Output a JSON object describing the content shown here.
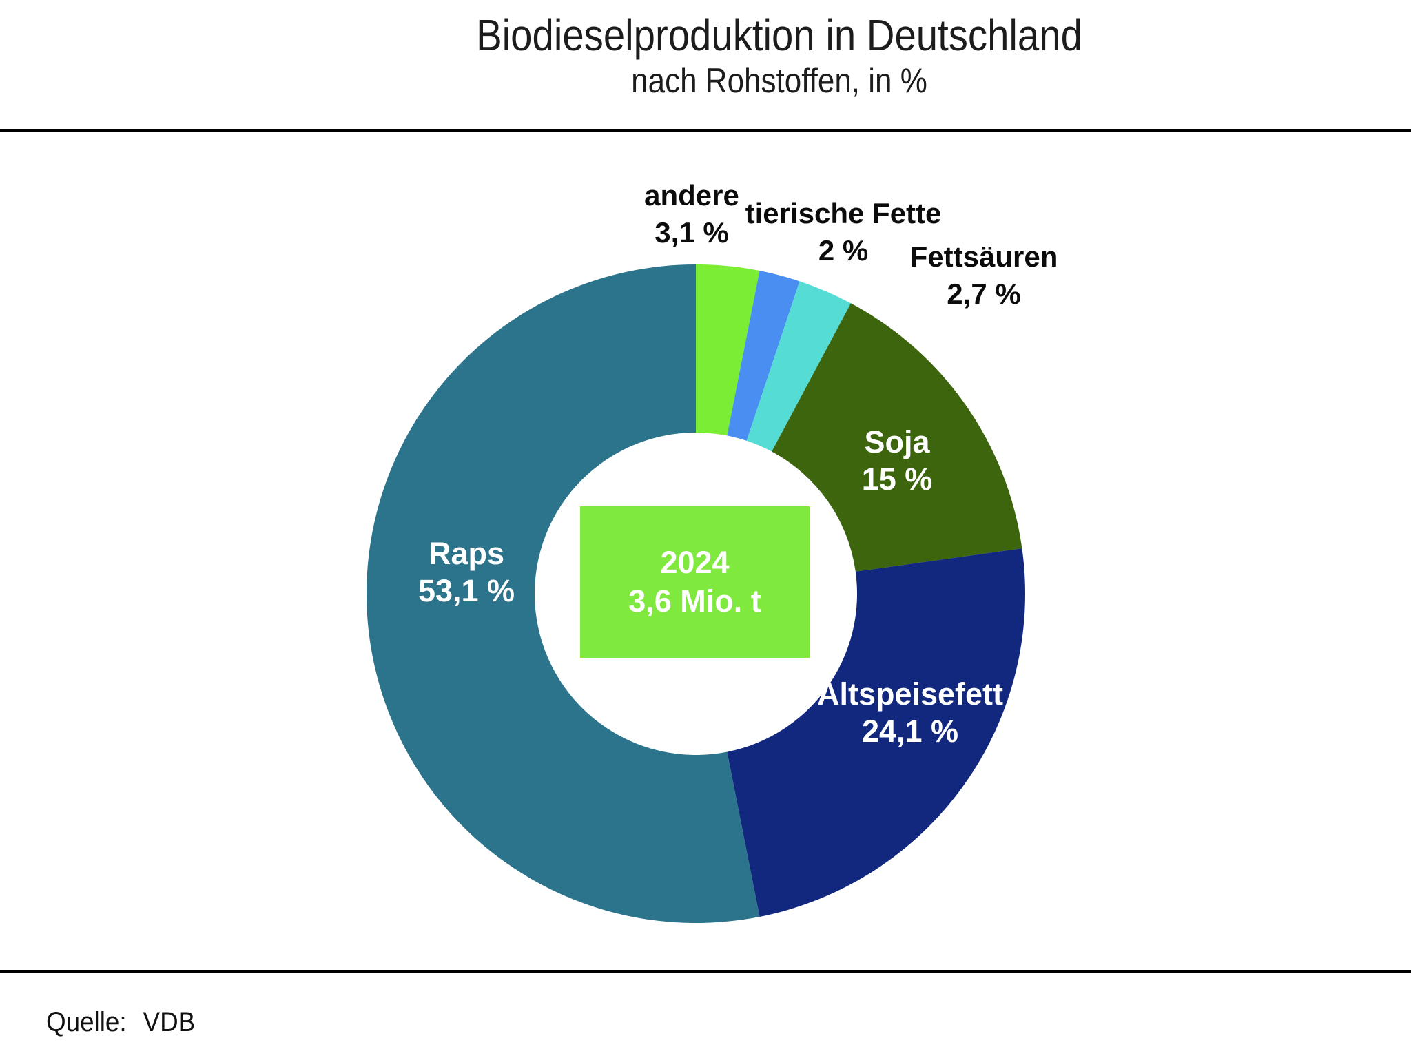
{
  "title": "Biodieselproduktion in Deutschland",
  "subtitle": "nach Rohstoffen, in %",
  "source": {
    "label": "Quelle:",
    "value": "VDB"
  },
  "center_box": {
    "line1": "2024",
    "line2": "3,6 Mio. t",
    "bg_color": "#7fe93e",
    "text_color": "#ffffff"
  },
  "chart_data": {
    "type": "pie",
    "subtype": "donut",
    "title": "Biodieselproduktion in Deutschland nach Rohstoffen, in %",
    "unit": "%",
    "start_angle_deg": 0,
    "direction": "clockwise",
    "legend": "none",
    "inner_radius_ratio": 0.49,
    "segments": [
      {
        "label": "andere",
        "value": 3.1,
        "value_label": "3,1 %",
        "color": "#7bed35",
        "label_placement": "outside"
      },
      {
        "label": "tierische Fette",
        "value": 2,
        "value_label": "2 %",
        "color": "#4a8ef2",
        "label_placement": "outside"
      },
      {
        "label": "Fettsäuren",
        "value": 2.7,
        "value_label": "2,7 %",
        "color": "#55ddd5",
        "label_placement": "outside"
      },
      {
        "label": "Soja",
        "value": 15,
        "value_label": "15 %",
        "color": "#3c650e",
        "label_placement": "inside"
      },
      {
        "label": "Altspeisefett",
        "value": 24.1,
        "value_label": "24,1 %",
        "color": "#12287e",
        "label_placement": "inside"
      },
      {
        "label": "Raps",
        "value": 53.1,
        "value_label": "53,1 %",
        "color": "#2c748c",
        "label_placement": "inside"
      }
    ]
  }
}
